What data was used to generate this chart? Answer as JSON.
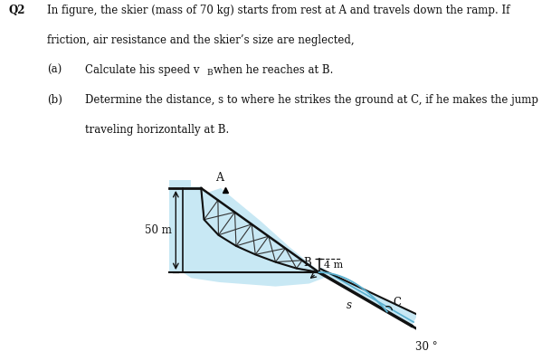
{
  "title_q": "Q2",
  "line1": "In figure, the skier (mass of 70 kg) starts from rest at A and travels down the ramp. If",
  "line2": "friction, air resistance and the skier’s size are neglected,",
  "part_a_label": "(a)",
  "part_a_text": "Calculate his speed vB when he reaches at B.",
  "part_b_label": "(b)",
  "part_b_line1": "Determine the distance, s to where he strikes the ground at C, if he makes the jump",
  "part_b_line2": "traveling horizontally at B.",
  "label_A": "A",
  "label_B": "B",
  "label_C": "C",
  "label_s": "s",
  "label_50m": "50 m",
  "label_4m": "4 m",
  "label_30deg": "30 °",
  "bg_color": "#ffffff",
  "light_blue": "#c8e8f4",
  "mid_blue": "#5ab0d0",
  "dark_line": "#111111",
  "truss_color": "#333333",
  "text_color": "#111111",
  "fig_w": 6.09,
  "fig_h": 3.88,
  "dpi": 100
}
